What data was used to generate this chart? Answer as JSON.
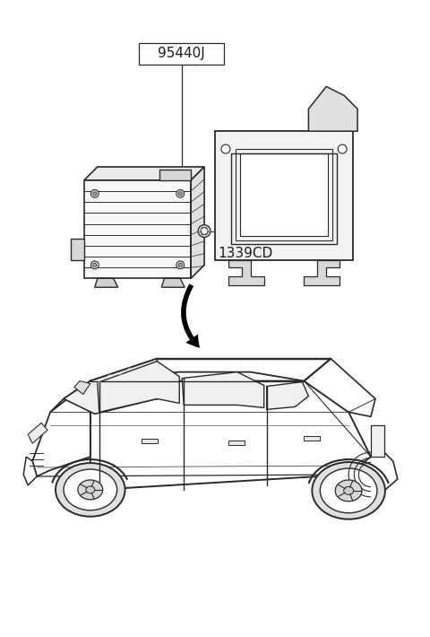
{
  "background_color": "#ffffff",
  "line_color": "#2a2a2a",
  "light_fill": "#f8f8f8",
  "label_95440J": "95440J",
  "label_1339CD": "1339CD",
  "fig_width": 4.8,
  "fig_height": 7.1,
  "dpi": 100
}
